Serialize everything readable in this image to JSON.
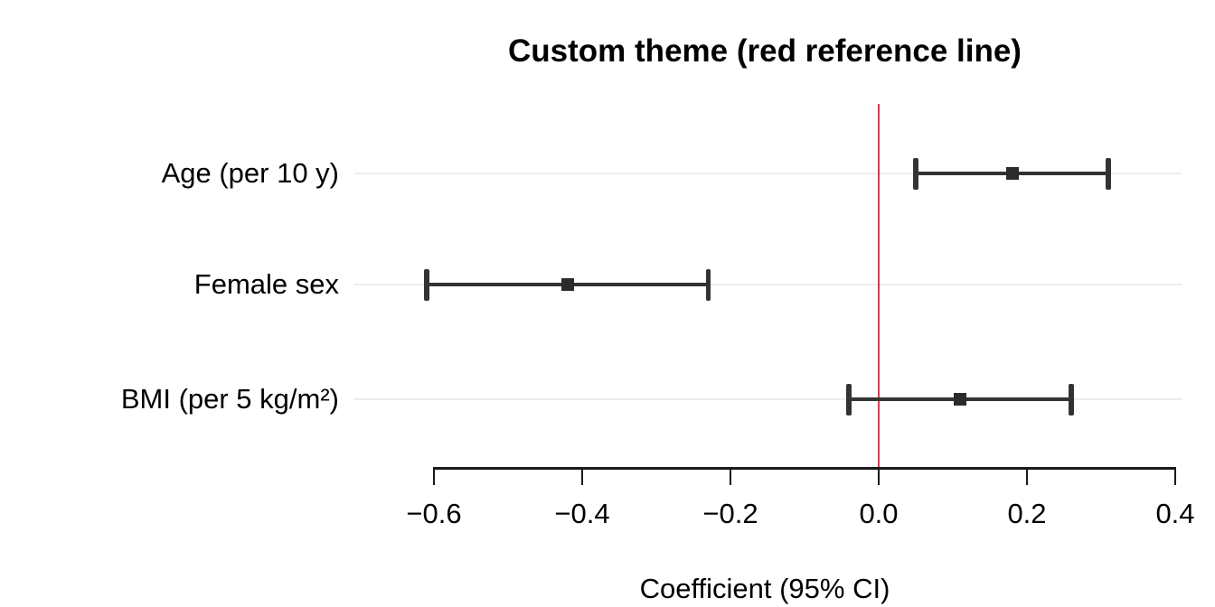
{
  "chart_data": {
    "type": "scatter",
    "variant": "forest-plot",
    "title": "Custom theme (red reference line)",
    "xlabel": "Coefficient (95% CI)",
    "ylabel": "",
    "categories": [
      "Age (per 10 y)",
      "Female sex",
      "BMI (per 5 kg/m²)"
    ],
    "series": [
      {
        "name": "Coefficient (95% CI)",
        "estimates": [
          0.18,
          -0.42,
          0.11
        ],
        "ci_low": [
          0.05,
          -0.61,
          -0.04
        ],
        "ci_high": [
          0.31,
          -0.23,
          0.26
        ]
      }
    ],
    "xticks": [
      -0.6,
      -0.4,
      -0.2,
      0.0,
      0.2,
      0.4
    ],
    "xtick_labels": [
      "−0.6",
      "−0.4",
      "−0.2",
      "0.0",
      "0.2",
      "0.4"
    ],
    "xlim": [
      -0.71,
      0.41
    ],
    "reference_line": {
      "x": 0.0,
      "color": "#e5364c"
    },
    "grid": "horizontal-row-lines-only",
    "legend": "none",
    "marker": "square",
    "colors": {
      "pointrange": "#333333",
      "marker": "#2b2b2b",
      "axis": "#1a1a1a",
      "gridline": "#ededed",
      "text": "#000000",
      "reference": "#e5364c",
      "background": "#ffffff"
    }
  }
}
